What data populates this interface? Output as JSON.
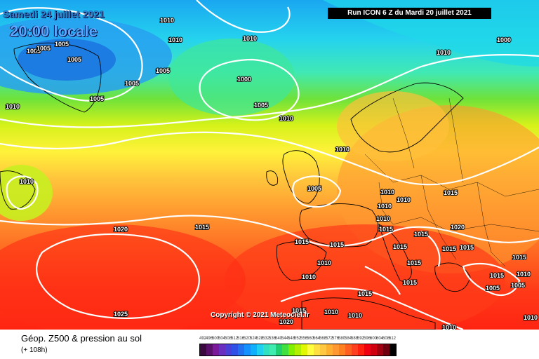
{
  "header": {
    "date": "Samedi 24 juillet 2021",
    "time": "20:00 locale",
    "run": "Run ICON 6 Z du Mardi 20 juillet 2021"
  },
  "footer": {
    "copyright": "Copyright © 2021 Meteociel.fr",
    "field": "Géop. Z500 & pression au sol",
    "lead": "(+ 108h)"
  },
  "isobar_labels": [
    "1010",
    "1005",
    "1005",
    "1005",
    "1005",
    "1010",
    "1005",
    "1005",
    "1010",
    "1000",
    "1005",
    "1010",
    "1005",
    "1000",
    "1010",
    "1010",
    "1005",
    "1010",
    "1015",
    "1020",
    "1015",
    "1010",
    "1010",
    "1010",
    "1015",
    "1010",
    "1015",
    "1015",
    "1020",
    "1015",
    "1015",
    "1015",
    "1015",
    "1015",
    "1015",
    "1010",
    "1010",
    "1015",
    "1015",
    "1010",
    "1025",
    "1020",
    "1010",
    "1010",
    "1015",
    "1010",
    "1015",
    "1005",
    "1005",
    "1010",
    "1010"
  ],
  "colorbar_ticks": [
    "492",
    "496",
    "500",
    "504",
    "508",
    "512",
    "516",
    "520",
    "524",
    "528",
    "532",
    "536",
    "540",
    "544",
    "548",
    "552",
    "556",
    "560",
    "564",
    "568",
    "572",
    "576",
    "580",
    "584",
    "588",
    "592",
    "596",
    "600",
    "604",
    "608",
    "612"
  ],
  "colorbar_colors": [
    "#3a0a3e",
    "#5a0f6a",
    "#7a1a9a",
    "#6a2fbf",
    "#4a40d8",
    "#3050e8",
    "#2070f0",
    "#1590ff",
    "#10b0ff",
    "#20d0f0",
    "#30e0c0",
    "#40ecb0",
    "#20d070",
    "#40e040",
    "#80f000",
    "#b0f000",
    "#e0f800",
    "#ffff40",
    "#ffe040",
    "#ffc840",
    "#ffb030",
    "#ff9830",
    "#ff8020",
    "#ff6020",
    "#ff4020",
    "#ff2010",
    "#f00010",
    "#d00010",
    "#a00010",
    "#700010",
    "#000000"
  ]
}
